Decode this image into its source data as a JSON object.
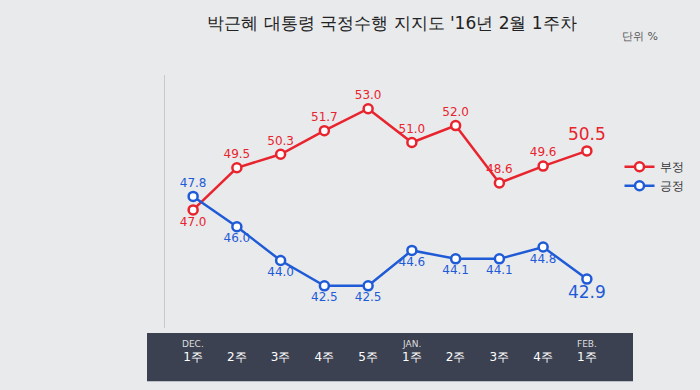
{
  "chart_data": {
    "type": "line",
    "title": "박근혜 대통령 국정수행 지지도 '16년 2월 1주차",
    "subtitle": "단위 %",
    "categories": [
      "1주",
      "2주",
      "3주",
      "4주",
      "5주",
      "1주",
      "2주",
      "3주",
      "4주",
      "1주"
    ],
    "annotations": [
      {
        "text": "DEC.",
        "x": 0
      },
      {
        "text": "JAN.",
        "x": 5
      },
      {
        "text": "FEB.",
        "x": 9
      }
    ],
    "series": [
      {
        "name": "부정",
        "color": "#e8242e",
        "marker": "circle",
        "line_style": "solid",
        "values": [
          47.0,
          49.5,
          50.3,
          51.7,
          53.0,
          51.0,
          52.0,
          48.6,
          49.6,
          50.5
        ],
        "value_labels": [
          "47.0",
          "49.5",
          "50.3",
          "51.7",
          "53.0",
          "51.0",
          "52.0",
          "48.6",
          "49.6",
          "50.5"
        ]
      },
      {
        "name": "긍정",
        "color": "#1f5bd6",
        "marker": "circle",
        "line_style": "solid",
        "values": [
          47.8,
          46.0,
          44.0,
          42.5,
          42.5,
          44.6,
          44.1,
          44.1,
          44.8,
          42.9
        ],
        "value_labels": [
          "47.8",
          "46.0",
          "44.0",
          "42.5",
          "42.5",
          "44.6",
          "44.1",
          "44.1",
          "44.8",
          "42.9"
        ]
      }
    ],
    "ylim": [
      40,
      55
    ],
    "grid": false,
    "legend": "right",
    "data_labels": true,
    "tick_labels": "x"
  }
}
